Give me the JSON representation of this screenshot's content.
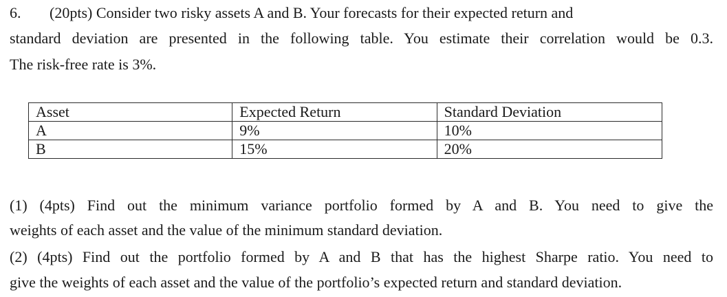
{
  "question": {
    "number": "6.",
    "intro_line1": "(20pts) Consider two risky assets A and B. Your forecasts for their expected return and",
    "intro_line2": "standard deviation are presented in the following table. You estimate their correlation would be 0.3.",
    "intro_line3": "The risk-free rate is 3%."
  },
  "table": {
    "headers": [
      "Asset",
      "Expected Return",
      "Standard Deviation"
    ],
    "rows": [
      [
        "A",
        "9%",
        "10%"
      ],
      [
        "B",
        "15%",
        "20%"
      ]
    ]
  },
  "parts": [
    {
      "line1": "(1)  (4pts) Find out the minimum variance portfolio formed by A and B. You need to give the",
      "line2": "weights of each asset and the value of the minimum standard deviation."
    },
    {
      "line1": "(2)  (4pts) Find out the portfolio formed by A and B that has the highest Sharpe ratio. You need to",
      "line2": "give the weights of each asset and the value of the portfolio’s expected return and standard deviation."
    }
  ]
}
